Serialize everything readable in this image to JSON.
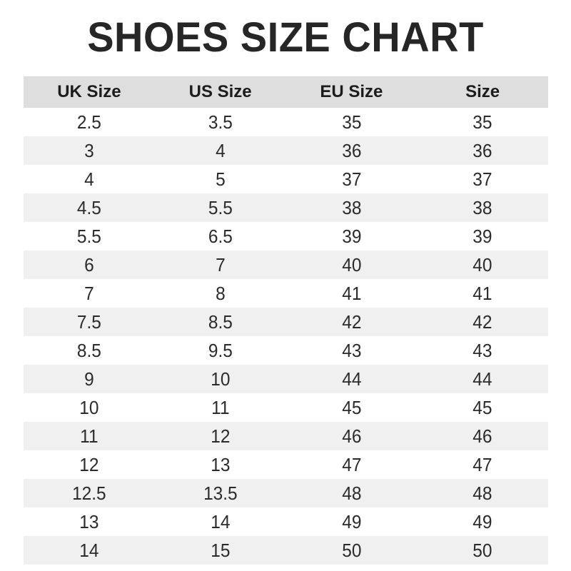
{
  "title": "SHOES SIZE CHART",
  "table": {
    "headers": [
      "UK Size",
      "US Size",
      "EU Size",
      "Size"
    ],
    "rows": [
      [
        "2.5",
        "3.5",
        "35",
        "35"
      ],
      [
        "3",
        "4",
        "36",
        "36"
      ],
      [
        "4",
        "5",
        "37",
        "37"
      ],
      [
        "4.5",
        "5.5",
        "38",
        "38"
      ],
      [
        "5.5",
        "6.5",
        "39",
        "39"
      ],
      [
        "6",
        "7",
        "40",
        "40"
      ],
      [
        "7",
        "8",
        "41",
        "41"
      ],
      [
        "7.5",
        "8.5",
        "42",
        "42"
      ],
      [
        "8.5",
        "9.5",
        "43",
        "43"
      ],
      [
        "9",
        "10",
        "44",
        "44"
      ],
      [
        "10",
        "11",
        "45",
        "45"
      ],
      [
        "11",
        "12",
        "46",
        "46"
      ],
      [
        "12",
        "13",
        "47",
        "47"
      ],
      [
        "12.5",
        "13.5",
        "48",
        "48"
      ],
      [
        "13",
        "14",
        "49",
        "49"
      ],
      [
        "14",
        "15",
        "50",
        "50"
      ]
    ]
  },
  "colors": {
    "header_bg": "#dedede",
    "stripe_bg": "#f0f0f0",
    "row_bg": "#ffffff",
    "header_text": "#1c1c1c",
    "cell_text": "#2b2b2b",
    "title_text": "#262626"
  },
  "chart_data": {
    "type": "table",
    "title": "SHOES SIZE CHART",
    "columns": [
      "UK Size",
      "US Size",
      "EU Size",
      "Size"
    ],
    "rows": [
      [
        "2.5",
        "3.5",
        "35",
        "35"
      ],
      [
        "3",
        "4",
        "36",
        "36"
      ],
      [
        "4",
        "5",
        "37",
        "37"
      ],
      [
        "4.5",
        "5.5",
        "38",
        "38"
      ],
      [
        "5.5",
        "6.5",
        "39",
        "39"
      ],
      [
        "6",
        "7",
        "40",
        "40"
      ],
      [
        "7",
        "8",
        "41",
        "41"
      ],
      [
        "7.5",
        "8.5",
        "42",
        "42"
      ],
      [
        "8.5",
        "9.5",
        "43",
        "43"
      ],
      [
        "9",
        "10",
        "44",
        "44"
      ],
      [
        "10",
        "11",
        "45",
        "45"
      ],
      [
        "11",
        "12",
        "46",
        "46"
      ],
      [
        "12",
        "13",
        "47",
        "47"
      ],
      [
        "12.5",
        "13.5",
        "48",
        "48"
      ],
      [
        "13",
        "14",
        "49",
        "49"
      ],
      [
        "14",
        "15",
        "50",
        "50"
      ]
    ],
    "layout": {
      "header_background": "#dedede",
      "zebra_stripes": true,
      "stripe_background": "#f0f0f0",
      "alignment": "center"
    }
  }
}
